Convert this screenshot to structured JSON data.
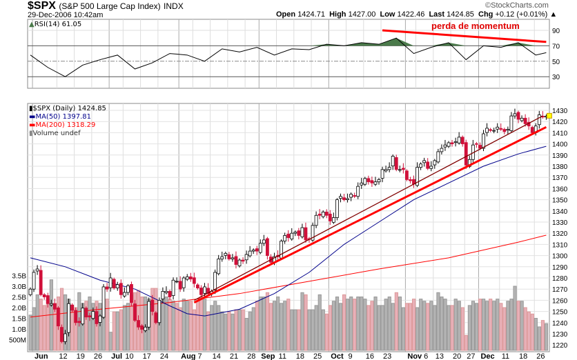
{
  "header": {
    "symbol": "$SPX",
    "name": "(S&P 500 Large Cap Index)",
    "exchange": "INDX",
    "datetime": "29-Dec-2006 10:42am",
    "copyright": "©StockCharts.com",
    "open_label": "Open",
    "open": "1424.71",
    "high_label": "High",
    "high": "1427.00",
    "low_label": "Low",
    "low": "1422.46",
    "last_label": "Last",
    "last": "1424.85",
    "chg_label": "Chg",
    "chg": "+0.12 (+0.01%)"
  },
  "annotation": "perda de momentum",
  "colors": {
    "up": "#000000",
    "down": "#d0103a",
    "ma50": "#00008b",
    "ma200": "#ff0000",
    "trendline": "#ff0000",
    "trendline_dark": "#800000",
    "volume_up": "#b4b4b4",
    "volume_down": "#e8b0b8",
    "rsi_fill": "#4a7a4a"
  },
  "chart_data": [
    {
      "type": "line",
      "title": "RSI(14) 61.05",
      "yticks": [
        90,
        70,
        50,
        30
      ],
      "ylim": [
        15,
        95
      ],
      "x": [
        0,
        5,
        10,
        15,
        20,
        25,
        30,
        35,
        40,
        45,
        50,
        55,
        60,
        65,
        70,
        75,
        80,
        85,
        90,
        95,
        100,
        105,
        110,
        115,
        120,
        125,
        130,
        135,
        140,
        145,
        148
      ],
      "values": [
        58,
        42,
        30,
        45,
        52,
        58,
        40,
        48,
        60,
        58,
        50,
        66,
        62,
        68,
        58,
        66,
        65,
        72,
        70,
        74,
        72,
        80,
        60,
        68,
        74,
        52,
        70,
        68,
        74,
        58,
        61.05
      ]
    },
    {
      "type": "candlestick",
      "ylim": [
        1215,
        1435
      ],
      "yticks": [
        1220,
        1230,
        1240,
        1250,
        1260,
        1270,
        1280,
        1290,
        1300,
        1310,
        1320,
        1330,
        1340,
        1350,
        1360,
        1370,
        1380,
        1390,
        1400,
        1410,
        1420,
        1430
      ],
      "legend": [
        "$SPX (Daily) 1424.85",
        "MA(50) 1397.81",
        "MA(200) 1318.29",
        "Volume undef"
      ],
      "x_ticks": [
        {
          "label": "Jun",
          "day": 1
        },
        {
          "label": "12",
          "day": 8
        },
        {
          "label": "19",
          "day": 13
        },
        {
          "label": "26",
          "day": 18
        },
        {
          "label": "Jul",
          "day": 23
        },
        {
          "label": "10",
          "day": 27
        },
        {
          "label": "17",
          "day": 32
        },
        {
          "label": "24",
          "day": 37
        },
        {
          "label": "Aug",
          "day": 43
        },
        {
          "label": "7",
          "day": 47
        },
        {
          "label": "14",
          "day": 52
        },
        {
          "label": "21",
          "day": 57
        },
        {
          "label": "28",
          "day": 62
        },
        {
          "label": "Sep",
          "day": 66
        },
        {
          "label": "11",
          "day": 71
        },
        {
          "label": "18",
          "day": 76
        },
        {
          "label": "25",
          "day": 81
        },
        {
          "label": "Oct",
          "day": 86
        },
        {
          "label": "9",
          "day": 91
        },
        {
          "label": "16",
          "day": 96
        },
        {
          "label": "23",
          "day": 101
        },
        {
          "label": "Nov",
          "day": 108
        },
        {
          "label": "6",
          "day": 111
        },
        {
          "label": "13",
          "day": 116
        },
        {
          "label": "20",
          "day": 121
        },
        {
          "label": "27",
          "day": 125
        },
        {
          "label": "Dec",
          "day": 129
        },
        {
          "label": "11",
          "day": 135
        },
        {
          "label": "18",
          "day": 140
        },
        {
          "label": "26",
          "day": 145
        }
      ],
      "close": [
        1270,
        1285,
        1288,
        1265,
        1263,
        1257,
        1257,
        1252,
        1237,
        1223,
        1230,
        1257,
        1251,
        1240,
        1240,
        1253,
        1245,
        1245,
        1250,
        1239,
        1246,
        1272,
        1270,
        1280,
        1271,
        1274,
        1265,
        1267,
        1273,
        1258,
        1242,
        1236,
        1234,
        1236,
        1259,
        1250,
        1240,
        1260,
        1268,
        1268,
        1263,
        1278,
        1277,
        1270,
        1280,
        1281,
        1279,
        1275,
        1271,
        1265,
        1272,
        1266,
        1268,
        1285,
        1297,
        1299,
        1302,
        1297,
        1298,
        1292,
        1296,
        1295,
        1301,
        1304,
        1305,
        1304,
        1311,
        1314,
        1300,
        1294,
        1299,
        1299,
        1313,
        1318,
        1316,
        1320,
        1321,
        1318,
        1325,
        1314,
        1315,
        1327,
        1336,
        1336,
        1339,
        1336,
        1331,
        1334,
        1350,
        1353,
        1350,
        1351,
        1355,
        1353,
        1362,
        1365,
        1369,
        1366,
        1365,
        1366,
        1368,
        1377,
        1377,
        1379,
        1389,
        1377,
        1377,
        1377,
        1368,
        1367,
        1364,
        1379,
        1382,
        1385,
        1378,
        1380,
        1385,
        1393,
        1396,
        1399,
        1401,
        1400,
        1402,
        1406,
        1400,
        1381,
        1386,
        1399,
        1400,
        1396,
        1409,
        1414,
        1412,
        1412,
        1415,
        1413,
        1411,
        1413,
        1425,
        1427,
        1422,
        1423,
        1418,
        1416,
        1410,
        1416,
        1426,
        1424,
        1424.85
      ],
      "ma50": {
        "x": [
          0,
          10,
          20,
          30,
          40,
          45,
          50,
          60,
          70,
          80,
          90,
          100,
          110,
          120,
          130,
          140,
          148
        ],
        "values": [
          1298,
          1290,
          1278,
          1270,
          1255,
          1248,
          1246,
          1252,
          1266,
          1285,
          1310,
          1330,
          1350,
          1365,
          1380,
          1391,
          1397.81
        ]
      },
      "ma200": {
        "x": [
          0,
          20,
          40,
          60,
          80,
          100,
          120,
          140,
          148
        ],
        "values": [
          1245,
          1252,
          1258,
          1266,
          1277,
          1288,
          1298,
          1312,
          1318.29
        ]
      },
      "volume_ylim": [
        0,
        3.8
      ],
      "volume_ticks": [
        "500M",
        "1.0B",
        "1.5B",
        "2.0B",
        "2.5B",
        "3.0B",
        "3.5B"
      ],
      "volume": [
        1.65,
        2.0,
        2.6,
        2.4,
        2.1,
        2.4,
        3.3,
        2.2,
        2.5,
        2.9,
        2.6,
        2.4,
        2.1,
        2.0,
        2.7,
        2.2,
        2.3,
        2.5,
        2.2,
        2.3,
        2.2,
        2.0,
        2.4,
        0.85,
        1.8,
        1.8,
        1.9,
        2.1,
        2.2,
        2.6,
        2.7,
        2.8,
        2.5,
        2.5,
        2.4,
        2.9,
        2.9,
        2.3,
        2.6,
        2.5,
        2.4,
        2.3,
        2.2,
        2.0,
        2.4,
        2.3,
        2.3,
        1.9,
        2.3,
        2.5,
        2.4,
        1.8,
        2.1,
        2.3,
        2.1,
        1.8,
        1.7,
        1.8,
        1.7,
        1.9,
        1.9,
        1.9,
        1.5,
        1.8,
        2.0,
        2.3,
        2.5,
        2.5,
        2.7,
        2.2,
        2.3,
        2.5,
        2.2,
        2.3,
        2.4,
        1.9,
        1.9,
        1.9,
        2.7,
        2.6,
        1.9,
        1.9,
        2.1,
        2.6,
        1.9,
        1.7,
        2.1,
        2.3,
        2.5,
        2.2,
        2.6,
        2.4,
        2.5,
        2.4,
        2.5,
        2.5,
        2.4,
        2.1,
        2.3,
        2.5,
        2.1,
        2.1,
        2.4,
        2.5,
        2.2,
        2.7,
        2.5,
        2.0,
        2.2,
        2.2,
        2.4,
        2.0,
        2.4,
        2.3,
        2.2,
        2.3,
        2.1,
        2.7,
        2.5,
        2.4,
        2.1,
        2.1,
        2.4,
        2.3,
        2.0,
        0.7,
        2.1,
        2.3,
        2.2,
        2.4,
        2.4,
        2.3,
        2.4,
        2.3,
        2.4,
        2.2,
        2.0,
        2.3,
        2.4,
        3.0,
        2.3,
        2.3,
        2.0,
        1.8,
        1.7,
        1.5,
        1.1,
        1.4,
        1.25
      ],
      "trendlines": [
        {
          "from": [
            47,
            1258
          ],
          "to": [
            148,
            1415
          ],
          "color": "red",
          "width": "thick"
        },
        {
          "from": [
            47,
            1260
          ],
          "to": [
            147,
            1425
          ],
          "color": "dark-red",
          "width": "thin"
        }
      ]
    }
  ],
  "rsi_trendline": {
    "from": [
      101,
      90
    ],
    "to": [
      148,
      75
    ]
  }
}
